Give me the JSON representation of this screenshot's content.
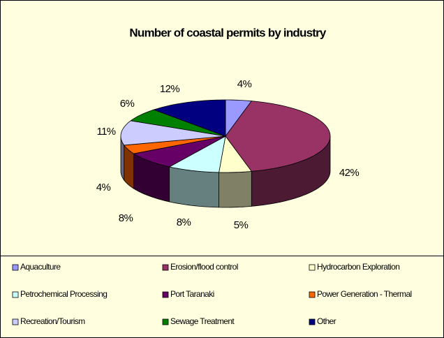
{
  "chart_data": {
    "type": "pie3d",
    "title": "Number of coastal permits by industry",
    "categories": [
      "Aquaculture",
      "Erosion/flood control",
      "Hydrocarbon Exploration",
      "Petrochemical Processing",
      "Port Taranaki",
      "Power Generation - Thermal",
      "Recreation/Tourism",
      "Sewage Treatment",
      "Other"
    ],
    "values": [
      4,
      42,
      5,
      8,
      8,
      4,
      11,
      6,
      12
    ],
    "value_labels": [
      "4%",
      "42%",
      "5%",
      "8%",
      "8%",
      "4%",
      "11%",
      "6%",
      "12%"
    ],
    "colors": [
      "#9999ff",
      "#993366",
      "#ffffcc",
      "#ccffff",
      "#660066",
      "#ff6600",
      "#ccccff",
      "#008000",
      "#000080"
    ],
    "legend": "bottom"
  }
}
